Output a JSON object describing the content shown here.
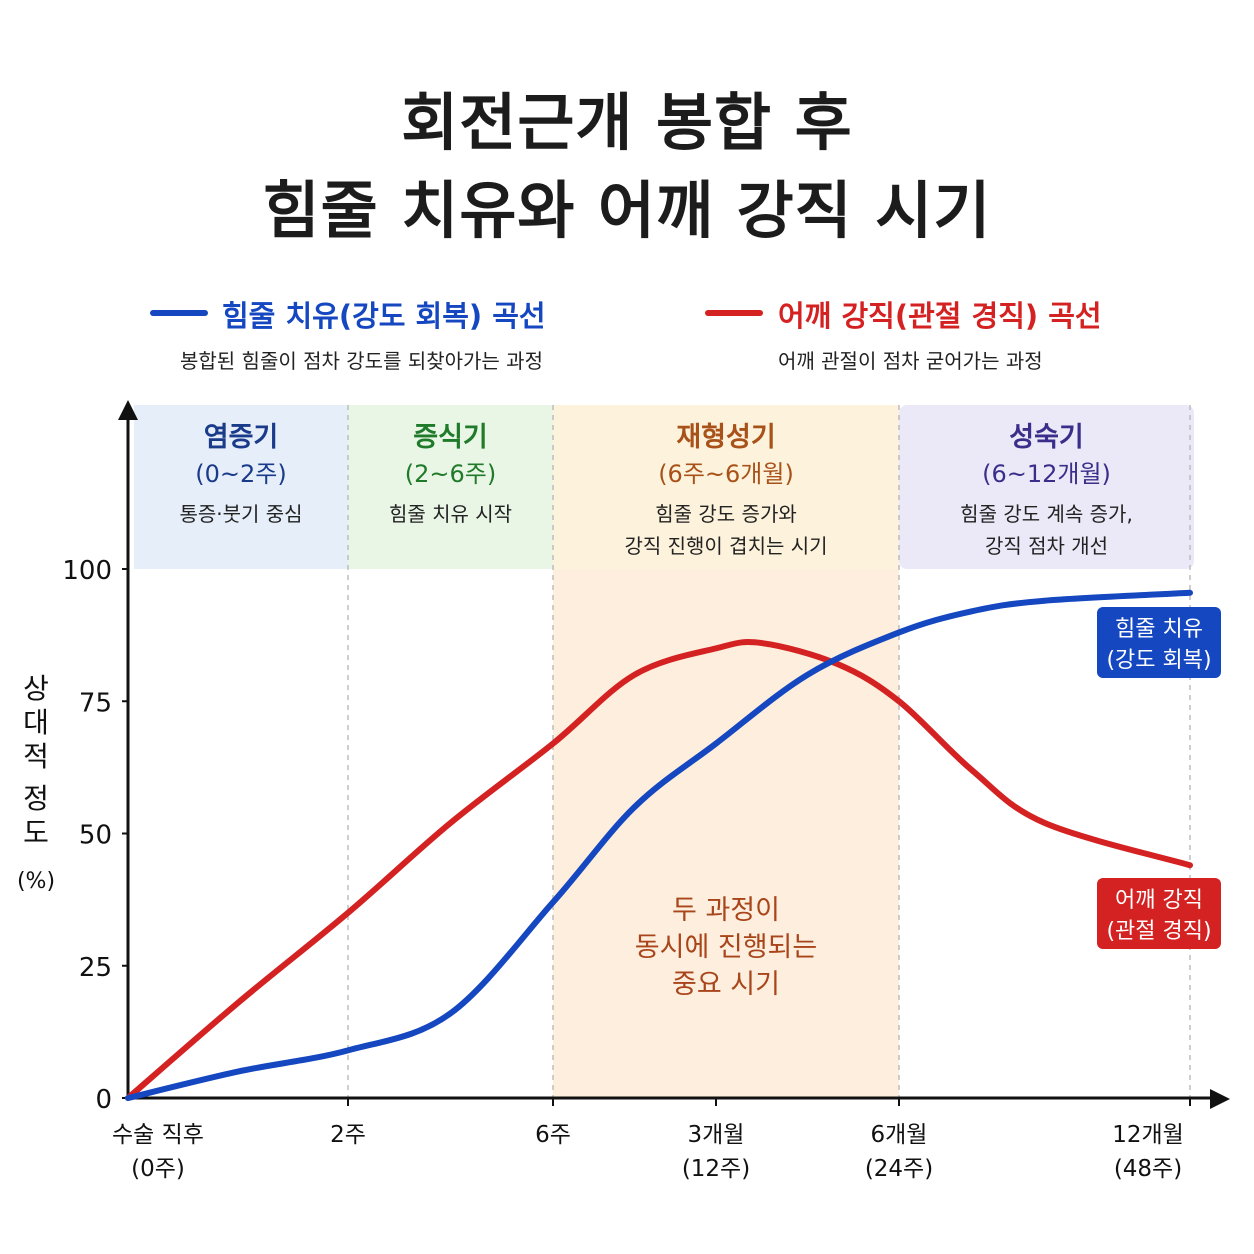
{
  "title": {
    "line1": "회전근개 봉합 후",
    "line2": "힘줄 치유와 어깨 강직 시기"
  },
  "legend": [
    {
      "label": "힘줄 치유(강도 회복) 곡선",
      "description": "봉합된 힘줄이 점차 강도를 되찾아가는 과정",
      "color": "#1447c0"
    },
    {
      "label": "어깨 강직(관절 경직) 곡선",
      "description": "어깨 관절이 점차 굳어가는 과정",
      "color": "#d42222"
    }
  ],
  "phases": [
    {
      "name": "염증기",
      "range": "(0~2주)",
      "desc": [
        "통증·붓기 중심"
      ],
      "color": "#1a3a8a",
      "bg": "#e6eefa"
    },
    {
      "name": "증식기",
      "range": "(2~6주)",
      "desc": [
        "힘줄 치유 시작"
      ],
      "color": "#1f7a2a",
      "bg": "#e9f6e6"
    },
    {
      "name": "재형성기",
      "range": "(6주~6개월)",
      "desc": [
        "힘줄 강도 증가와",
        "강직 진행이 겹치는 시기"
      ],
      "color": "#a8521a",
      "bg": "#fdf3dc"
    },
    {
      "name": "성숙기",
      "range": "(6~12개월)",
      "desc": [
        "힘줄 강도 계속 증가,",
        "강직 점차 개선"
      ],
      "color": "#3a2e8a",
      "bg": "#ebe8f7"
    }
  ],
  "overlap_note": [
    "두 과정이",
    "동시에 진행되는",
    "중요 시기"
  ],
  "chart_data": {
    "type": "line",
    "ylabel_chars": [
      "상",
      "대",
      "적",
      "정",
      "도"
    ],
    "ylabel_unit": "(%)",
    "ylim": [
      0,
      100
    ],
    "yticks": [
      "0",
      "25",
      "50",
      "75",
      "100"
    ],
    "x_ticks": [
      {
        "x": 0,
        "line1": "수술 직후",
        "line2": "(0주)"
      },
      {
        "x": 2,
        "line1": "2주",
        "line2": ""
      },
      {
        "x": 6,
        "line1": "6주",
        "line2": ""
      },
      {
        "x": 12,
        "line1": "3개월",
        "line2": "(12주)"
      },
      {
        "x": 24,
        "line1": "6개월",
        "line2": "(24주)"
      },
      {
        "x": 48,
        "line1": "12개월",
        "line2": "(48주)"
      }
    ],
    "series": [
      {
        "name": "힘줄 치유",
        "end_label": [
          "힘줄 치유",
          "(강도 회복)"
        ],
        "color": "#1447c0",
        "points": [
          [
            0,
            0
          ],
          [
            1,
            5
          ],
          [
            2,
            9
          ],
          [
            4,
            16
          ],
          [
            6,
            37
          ],
          [
            9,
            55
          ],
          [
            12,
            67
          ],
          [
            18,
            80
          ],
          [
            24,
            88
          ],
          [
            30,
            92
          ],
          [
            36,
            94
          ],
          [
            48,
            95.5
          ]
        ]
      },
      {
        "name": "어깨 강직",
        "end_label": [
          "어깨 강직",
          "(관절 경직)"
        ],
        "color": "#d42222",
        "points": [
          [
            0,
            0
          ],
          [
            1,
            18
          ],
          [
            2,
            35
          ],
          [
            4,
            52
          ],
          [
            6,
            67
          ],
          [
            9,
            80
          ],
          [
            12,
            85
          ],
          [
            15,
            86
          ],
          [
            20,
            82
          ],
          [
            24,
            75
          ],
          [
            30,
            62
          ],
          [
            36,
            52
          ],
          [
            48,
            44
          ]
        ]
      }
    ]
  }
}
